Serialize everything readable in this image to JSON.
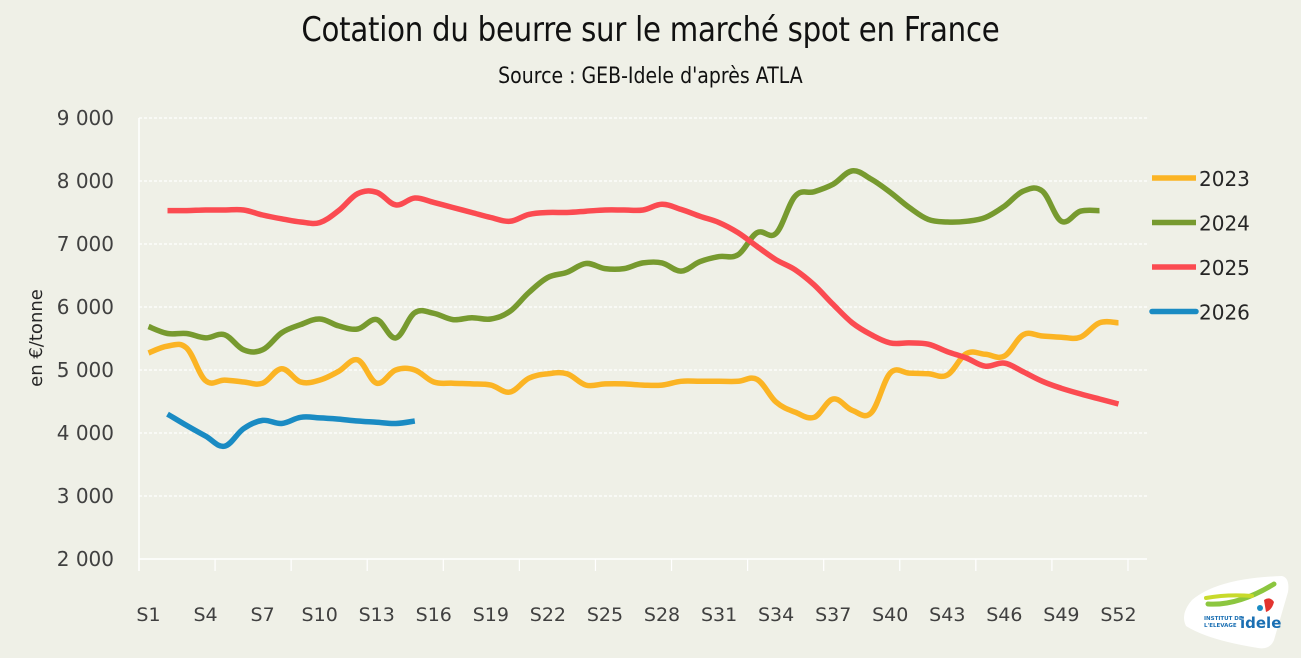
{
  "chart_data": {
    "type": "line",
    "title": "Cotation du beurre sur le marché spot en France",
    "subtitle": "Source : GEB-Idele d'après ATLA",
    "xlabel": "",
    "ylabel": "en €/tonne",
    "ylim": [
      2000,
      9000
    ],
    "yticks": [
      2000,
      3000,
      4000,
      5000,
      6000,
      7000,
      8000,
      9000
    ],
    "ytick_labels": [
      "2 000",
      "3 000",
      "4 000",
      "5 000",
      "6 000",
      "7 000",
      "8 000",
      "9 000"
    ],
    "x_categories_count": 53,
    "xtick_labels": [
      "S1",
      "S4",
      "S7",
      "S10",
      "S13",
      "S16",
      "S19",
      "S22",
      "S25",
      "S28",
      "S31",
      "S34",
      "S37",
      "S40",
      "S43",
      "S46",
      "S49",
      "S52"
    ],
    "xtick_weeks": [
      1,
      4,
      7,
      10,
      13,
      16,
      19,
      22,
      25,
      28,
      31,
      34,
      37,
      40,
      43,
      46,
      49,
      52
    ],
    "grid": true,
    "legend_position": "right",
    "series": [
      {
        "name": "2023",
        "color": "#fbb424",
        "start_week": 1,
        "values": [
          5270,
          5380,
          5350,
          4830,
          4840,
          4810,
          4790,
          5020,
          4810,
          4840,
          4980,
          5160,
          4790,
          5000,
          5000,
          4810,
          4790,
          4780,
          4760,
          4650,
          4870,
          4940,
          4940,
          4760,
          4780,
          4780,
          4760,
          4760,
          4820,
          4820,
          4820,
          4820,
          4850,
          4490,
          4330,
          4250,
          4540,
          4360,
          4320,
          4950,
          4950,
          4940,
          4920,
          5260,
          5250,
          5220,
          5560,
          5540,
          5520,
          5520,
          5750,
          5750
        ]
      },
      {
        "name": "2024",
        "color": "#779a2f",
        "start_week": 1,
        "values": [
          5690,
          5580,
          5580,
          5510,
          5560,
          5320,
          5320,
          5590,
          5720,
          5810,
          5700,
          5650,
          5800,
          5510,
          5910,
          5900,
          5800,
          5830,
          5810,
          5930,
          6230,
          6470,
          6550,
          6690,
          6610,
          6610,
          6700,
          6700,
          6570,
          6720,
          6800,
          6830,
          7180,
          7170,
          7760,
          7830,
          7950,
          8160,
          8030,
          7820,
          7580,
          7390,
          7350,
          7360,
          7420,
          7600,
          7840,
          7840,
          7360,
          7520,
          7530
        ]
      },
      {
        "name": "2025",
        "color": "#fb4b51",
        "start_week": 2,
        "values": [
          7530,
          7530,
          7540,
          7540,
          7540,
          7460,
          7400,
          7350,
          7340,
          7530,
          7800,
          7820,
          7620,
          7730,
          7660,
          7580,
          7500,
          7420,
          7360,
          7470,
          7500,
          7500,
          7520,
          7540,
          7540,
          7540,
          7630,
          7550,
          7440,
          7340,
          7180,
          6960,
          6750,
          6590,
          6350,
          6040,
          5750,
          5560,
          5430,
          5430,
          5410,
          5290,
          5190,
          5060,
          5110,
          4970,
          4820,
          4710,
          4620,
          4540,
          4460
        ]
      },
      {
        "name": "2026",
        "color": "#1a8bc3",
        "start_week": 2,
        "values": [
          4300,
          4120,
          3950,
          3790,
          4070,
          4200,
          4150,
          4250,
          4240,
          4220,
          4190,
          4170,
          4150,
          4190
        ]
      }
    ]
  },
  "logo": {
    "line1": "INSTITUT DE",
    "line2": "L'ELEVAGE",
    "brand": "idele"
  }
}
